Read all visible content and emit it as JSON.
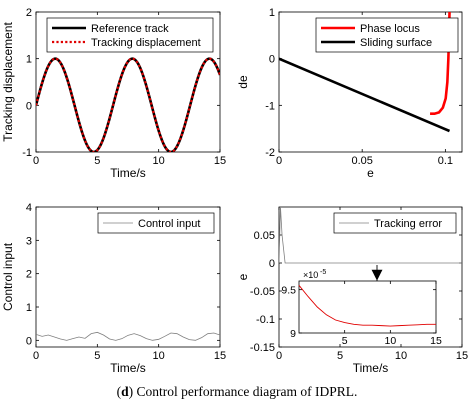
{
  "caption": {
    "label": "d",
    "text": " Control performance diagram of IDPRL."
  },
  "chart_data": [
    {
      "type": "line",
      "panel": "top-left",
      "xlabel": "Time/s",
      "ylabel": "Tracking displacement",
      "xlim": [
        0,
        15
      ],
      "ylim": [
        -1,
        2
      ],
      "xticks": [
        "0",
        "5",
        "10",
        "15"
      ],
      "yticks": [
        "-1",
        "0",
        "1",
        "2"
      ],
      "legend_position": "top",
      "series": [
        {
          "name": "Reference track",
          "style": "solid",
          "color": "#000000",
          "function": "sin(t)",
          "x_range": [
            0,
            15
          ]
        },
        {
          "name": "Tracking displacement",
          "style": "dotted",
          "color": "#e00000",
          "function": "sin(t)",
          "x_range": [
            0,
            15
          ]
        }
      ]
    },
    {
      "type": "line",
      "panel": "top-right",
      "xlabel": "e",
      "ylabel": "de",
      "xlim": [
        0,
        0.11
      ],
      "ylim": [
        -2,
        1
      ],
      "xticks": [
        "0",
        "0.05",
        "0.1"
      ],
      "yticks": [
        "-2",
        "-1",
        "0",
        "1"
      ],
      "legend_position": "top-right",
      "series": [
        {
          "name": "Phase locus",
          "color": "#ff0000",
          "x": [
            0.1025,
            0.1022,
            0.1018,
            0.1012,
            0.1002,
            0.0985,
            0.0962,
            0.0935,
            0.0915,
            0.0908
          ],
          "y": [
            1.0,
            0.5,
            0.0,
            -0.5,
            -0.85,
            -1.05,
            -1.15,
            -1.18,
            -1.18,
            -1.18
          ]
        },
        {
          "name": "Sliding surface",
          "color": "#000000",
          "x": [
            0,
            0.1025
          ],
          "y": [
            0,
            -1.55
          ]
        }
      ]
    },
    {
      "type": "line",
      "panel": "bottom-left",
      "xlabel": "Time/s",
      "ylabel": "Control input",
      "xlim": [
        0,
        15
      ],
      "ylim": [
        -0.2,
        4
      ],
      "xticks": [
        "0",
        "5",
        "10",
        "15"
      ],
      "yticks": [
        "0",
        "1",
        "2",
        "3",
        "4"
      ],
      "legend_position": "top-right",
      "series": [
        {
          "name": "Control input",
          "color": "#808080",
          "x": [
            0,
            0.5,
            1,
            1.5,
            2,
            2.5,
            3,
            3.5,
            4,
            4.5,
            5,
            5.5,
            6,
            6.5,
            7,
            7.5,
            8,
            8.5,
            9,
            9.5,
            10,
            10.5,
            11,
            11.5,
            12,
            12.5,
            13,
            13.5,
            14,
            14.5,
            15
          ],
          "y": [
            0.18,
            0.12,
            0.16,
            0.1,
            0.04,
            0.0,
            0.05,
            0.1,
            0.06,
            0.2,
            0.24,
            0.16,
            0.04,
            0.0,
            0.05,
            0.15,
            0.2,
            0.14,
            0.05,
            0.0,
            0.03,
            0.12,
            0.22,
            0.2,
            0.1,
            0.02,
            0.0,
            0.08,
            0.2,
            0.22,
            0.16
          ]
        }
      ]
    },
    {
      "type": "line",
      "panel": "bottom-right",
      "xlabel": "Time/s",
      "ylabel": "e",
      "xlim": [
        0,
        15
      ],
      "ylim": [
        -0.15,
        0.1
      ],
      "xticks": [
        "0",
        "5",
        "10",
        "15"
      ],
      "yticks": [
        "-0.15",
        "-0.1",
        "-0.05",
        "0",
        "0.05"
      ],
      "legend_position": "top-right",
      "series": [
        {
          "name": "Tracking error",
          "color": "#808080",
          "x": [
            0,
            0.12,
            0.25,
            0.5,
            1,
            15
          ],
          "y": [
            0.0,
            0.1,
            0.05,
            0.0,
            0.0,
            0.0
          ]
        }
      ],
      "inset": {
        "xlim": [
          0,
          15
        ],
        "ylim": [
          9,
          9.6
        ],
        "xticks": [
          "5",
          "10",
          "15"
        ],
        "yticks": [
          "9",
          "9.5"
        ],
        "exponent_label": "×10",
        "exponent": "-5",
        "series": [
          {
            "color": "#e00000",
            "x": [
              0,
              1,
              2,
              3,
              4,
              5,
              6,
              7,
              8,
              9,
              10,
              11,
              12,
              13,
              14,
              15
            ],
            "y": [
              9.55,
              9.42,
              9.3,
              9.21,
              9.15,
              9.12,
              9.1,
              9.09,
              9.09,
              9.085,
              9.08,
              9.085,
              9.09,
              9.095,
              9.1,
              9.1
            ]
          }
        ]
      }
    }
  ]
}
